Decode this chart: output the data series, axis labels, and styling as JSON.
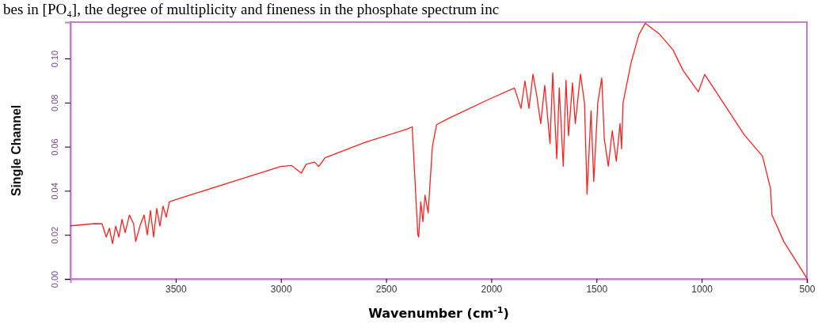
{
  "chart_data": {
    "type": "line",
    "xlabel": "Wavenumber (cm$^{-1}$)",
    "ylabel": "Single Channel",
    "annotations": [
      "bes in [PO₄], the degree of multiplicity and fineness in the phosphate spectrum inc"
    ],
    "xlim": [
      4000,
      500
    ],
    "ylim": [
      0,
      0.1165
    ],
    "xticks": [
      3500,
      3000,
      2500,
      2000,
      1500,
      1000,
      500
    ],
    "yticks": [
      {
        "value": 0,
        "label": "0.00"
      },
      {
        "value": 0.02,
        "label": "0.02"
      },
      {
        "value": 0.04,
        "label": "0.04"
      },
      {
        "value": 0.06,
        "label": "0.06"
      },
      {
        "value": 0.08,
        "label": "0.08"
      },
      {
        "value": 0.1,
        "label": "0.10"
      }
    ],
    "grid": false,
    "marker": "none",
    "line_style": "solid",
    "series": [
      {
        "color": "#ff2020",
        "x": [
          4000,
          3886,
          3850,
          3830,
          3815,
          3800,
          3785,
          3770,
          3755,
          3740,
          3720,
          3700,
          3690,
          3670,
          3650,
          3635,
          3620,
          3605,
          3590,
          3575,
          3560,
          3545,
          3530,
          3500,
          3400,
          3200,
          3000,
          2950,
          2903,
          2880,
          2840,
          2820,
          2790,
          2600,
          2400,
          2376,
          2349,
          2345,
          2335,
          2325,
          2315,
          2300,
          2280,
          2260,
          2200,
          2000,
          1890,
          1859,
          1840,
          1821,
          1802,
          1784,
          1765,
          1746,
          1721,
          1708,
          1689,
          1677,
          1658,
          1645,
          1633,
          1614,
          1601,
          1576,
          1557,
          1545,
          1526,
          1513,
          1494,
          1475,
          1463,
          1444,
          1425,
          1406,
          1388,
          1381,
          1374,
          1336,
          1298,
          1268,
          1200,
          1137,
          1088,
          1016,
          986,
          797,
          711,
          673,
          666,
          609,
          507,
          500
        ],
        "values": [
          0.0241,
          0.0251,
          0.025,
          0.019,
          0.023,
          0.016,
          0.024,
          0.019,
          0.027,
          0.021,
          0.029,
          0.025,
          0.017,
          0.024,
          0.029,
          0.02,
          0.031,
          0.019,
          0.032,
          0.024,
          0.033,
          0.028,
          0.035,
          0.036,
          0.039,
          0.045,
          0.051,
          0.0515,
          0.048,
          0.052,
          0.053,
          0.051,
          0.055,
          0.062,
          0.068,
          0.069,
          0.02,
          0.019,
          0.035,
          0.026,
          0.038,
          0.03,
          0.06,
          0.07,
          0.073,
          0.082,
          0.0866,
          0.0774,
          0.0898,
          0.0774,
          0.0929,
          0.0832,
          0.0705,
          0.0878,
          0.0614,
          0.0935,
          0.0545,
          0.0866,
          0.0511,
          0.0901,
          0.0649,
          0.0889,
          0.0705,
          0.0929,
          0.0797,
          0.0385,
          0.0763,
          0.0442,
          0.0797,
          0.0912,
          0.0637,
          0.0511,
          0.0672,
          0.0534,
          0.0705,
          0.059,
          0.0797,
          0.098,
          0.111,
          0.116,
          0.111,
          0.104,
          0.0945,
          0.0849,
          0.0928,
          0.0653,
          0.0557,
          0.041,
          0.029,
          0.0168,
          0.0014,
          0
        ]
      }
    ]
  }
}
